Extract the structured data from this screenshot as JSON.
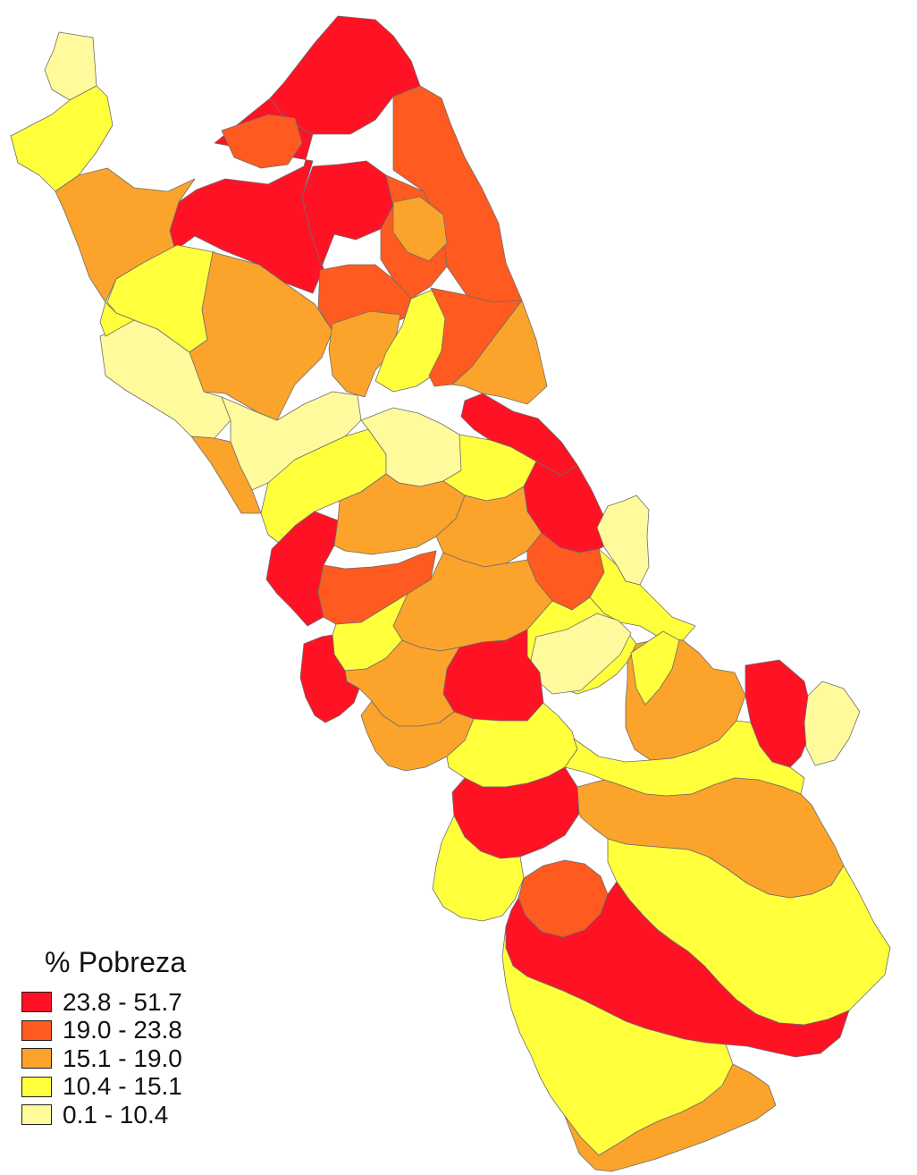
{
  "legend": {
    "title": "% Pobreza",
    "classes": [
      {
        "label": "23.8 - 51.7",
        "color": "#ff1224"
      },
      {
        "label": "19.0 - 23.8",
        "color": "#ff5a1f"
      },
      {
        "label": "15.1 - 19.0",
        "color": "#fba32a"
      },
      {
        "label": "10.4 - 15.1",
        "color": "#ffff3c"
      },
      {
        "label": "0.1 - 10.4",
        "color": "#fffa9c"
      }
    ]
  },
  "map": {
    "boundary_color": "#6e6e6e",
    "regions": [
      {
        "class": 4
      },
      {
        "class": 3
      },
      {
        "class": 0
      },
      {
        "class": 1
      },
      {
        "class": 0
      },
      {
        "class": 1
      },
      {
        "class": 2
      },
      {
        "class": 0
      },
      {
        "class": 1
      },
      {
        "class": 2
      },
      {
        "class": 3
      },
      {
        "class": 2
      },
      {
        "class": 4
      },
      {
        "class": 4
      },
      {
        "class": 3
      },
      {
        "class": 2
      },
      {
        "class": 1
      },
      {
        "class": 2
      },
      {
        "class": 3
      },
      {
        "class": 1
      },
      {
        "class": 2
      },
      {
        "class": 0
      },
      {
        "class": 3
      },
      {
        "class": 0
      },
      {
        "class": 1
      },
      {
        "class": 4
      },
      {
        "class": 3
      },
      {
        "class": 2
      },
      {
        "class": 0
      },
      {
        "class": 2
      },
      {
        "class": 1
      },
      {
        "class": 4
      },
      {
        "class": 3
      },
      {
        "class": 2
      },
      {
        "class": 3
      },
      {
        "class": 3
      },
      {
        "class": 4
      },
      {
        "class": 2
      },
      {
        "class": 3
      },
      {
        "class": 0
      },
      {
        "class": 2
      },
      {
        "class": 0
      },
      {
        "class": 0
      },
      {
        "class": 2
      },
      {
        "class": 3
      },
      {
        "class": 4
      },
      {
        "class": 3
      },
      {
        "class": 0
      },
      {
        "class": 2
      },
      {
        "class": 3
      },
      {
        "class": 1
      },
      {
        "class": 3
      },
      {
        "class": 0
      },
      {
        "class": 3
      },
      {
        "class": 2
      }
    ]
  }
}
